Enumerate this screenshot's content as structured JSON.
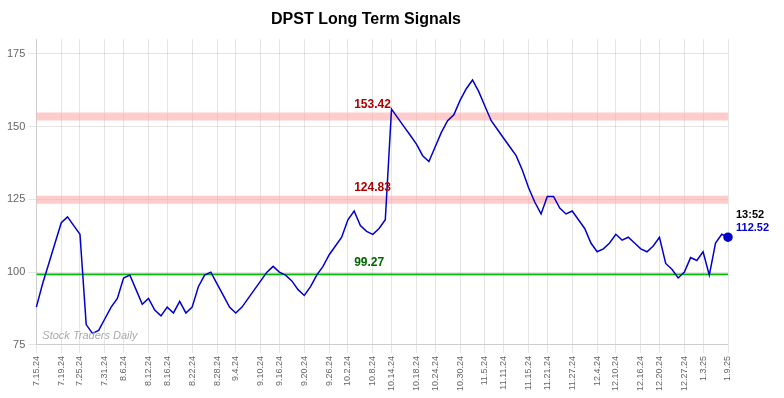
{
  "chart_data": {
    "type": "line",
    "title": "DPST Long Term Signals",
    "color": "#0000cc",
    "categories": [
      "7.15.24",
      null,
      null,
      null,
      "7.19.24",
      null,
      null,
      "7.25.24",
      null,
      null,
      null,
      "7.31.24",
      null,
      null,
      "8.6.24",
      null,
      null,
      null,
      "8.12.24",
      null,
      null,
      "8.16.24",
      null,
      null,
      null,
      "8.22.24",
      null,
      null,
      null,
      "8.28.24",
      null,
      null,
      "9.4.24",
      null,
      null,
      null,
      "9.10.24",
      null,
      null,
      "9.16.24",
      null,
      null,
      null,
      "9.20.24",
      null,
      null,
      null,
      "9.26.24",
      null,
      null,
      "10.2.24",
      null,
      null,
      null,
      "10.8.24",
      null,
      null,
      "10.14.24",
      null,
      null,
      null,
      "10.18.24",
      null,
      null,
      "10.24.24",
      null,
      null,
      null,
      "10.30.24",
      null,
      null,
      null,
      "11.5.24",
      null,
      null,
      "11.11.24",
      null,
      null,
      null,
      "11.15.24",
      null,
      null,
      "11.21.24",
      null,
      null,
      null,
      "11.27.24",
      null,
      null,
      null,
      "12.4.24",
      null,
      null,
      "12.10.24",
      null,
      null,
      null,
      "12.16.24",
      null,
      null,
      "12.20.24",
      null,
      null,
      null,
      "12.27.24",
      null,
      null,
      "1.3.25",
      null,
      null,
      null,
      "1.9.25"
    ],
    "values": [
      88,
      96,
      103,
      110,
      117,
      119,
      116,
      113,
      82,
      79,
      80,
      84,
      88,
      91,
      98,
      99,
      94,
      89,
      91,
      87,
      85,
      88,
      86,
      90,
      86,
      88,
      95,
      99,
      100,
      96,
      92,
      88,
      86,
      88,
      91,
      94,
      97,
      100,
      102,
      100,
      99,
      97,
      94,
      92,
      95,
      99,
      102,
      106,
      109,
      112,
      118,
      121,
      116,
      114,
      113,
      115,
      118,
      156,
      153,
      150,
      147,
      144,
      140,
      138,
      143,
      148,
      152,
      154,
      159,
      163,
      166,
      162,
      157,
      152,
      149,
      146,
      143,
      140,
      135,
      129,
      124,
      120,
      126,
      126,
      122,
      120,
      121,
      118,
      115,
      110,
      107,
      108,
      110,
      113,
      111,
      112,
      110,
      108,
      107,
      109,
      112,
      103,
      101,
      98,
      100,
      105,
      104,
      107,
      99,
      110,
      113,
      112
    ],
    "hlines": [
      {
        "y": 99.27,
        "color": "#00bb00",
        "line_style": "solid",
        "label": "99.27",
        "label_color": "#006600"
      },
      {
        "y": 153.42,
        "color": "#ffaaaa",
        "line_style": "thick",
        "label": "153.42",
        "label_color": "#aa0000"
      },
      {
        "y": 124.83,
        "color": "#ffaaaa",
        "line_style": "thick",
        "label": "124.83",
        "label_color": "#aa0000"
      }
    ],
    "annotations": [
      {
        "text": "13:52",
        "color": "#000000"
      },
      {
        "text": "112.52",
        "color": "#0000cc"
      }
    ],
    "watermark": {
      "text": "Stock Traders Daily",
      "color": "#aaaaaa"
    },
    "ylim": [
      75,
      180
    ],
    "yticks": [
      75,
      100,
      125,
      150,
      175
    ],
    "grid": true
  }
}
